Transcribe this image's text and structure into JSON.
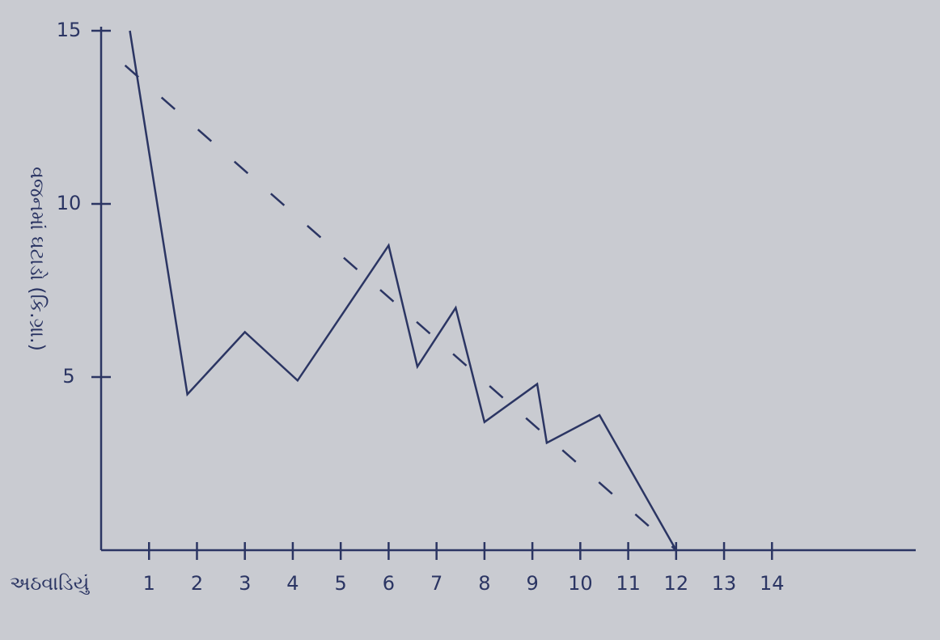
{
  "chart_data": {
    "type": "line",
    "y_label": "વજનમાં ઘટાડો (કિ.ગ્રા.)",
    "x_label": "અઠવાડિયું",
    "series": [
      {
        "x": [
          0.6,
          1.8,
          3,
          4.1,
          6,
          6.6,
          7.4,
          8,
          9.1,
          9.3,
          10.4,
          12
        ],
        "values": [
          15,
          4.5,
          6.3,
          4.9,
          8.8,
          5.3,
          7,
          3.7,
          4.8,
          3.1,
          3.9,
          0
        ],
        "color": "#2b3563",
        "dash": false
      },
      {
        "x": [
          0.5,
          12
        ],
        "values": [
          14,
          0
        ],
        "color": "#2b3563",
        "dash": true
      }
    ],
    "xlim": [
      0,
      17
    ],
    "ylim": [
      0,
      15
    ],
    "xticks": [
      1,
      2,
      3,
      4,
      5,
      6,
      7,
      8,
      9,
      10,
      11,
      12,
      13,
      14
    ],
    "yticks": [
      5,
      10,
      15
    ]
  }
}
